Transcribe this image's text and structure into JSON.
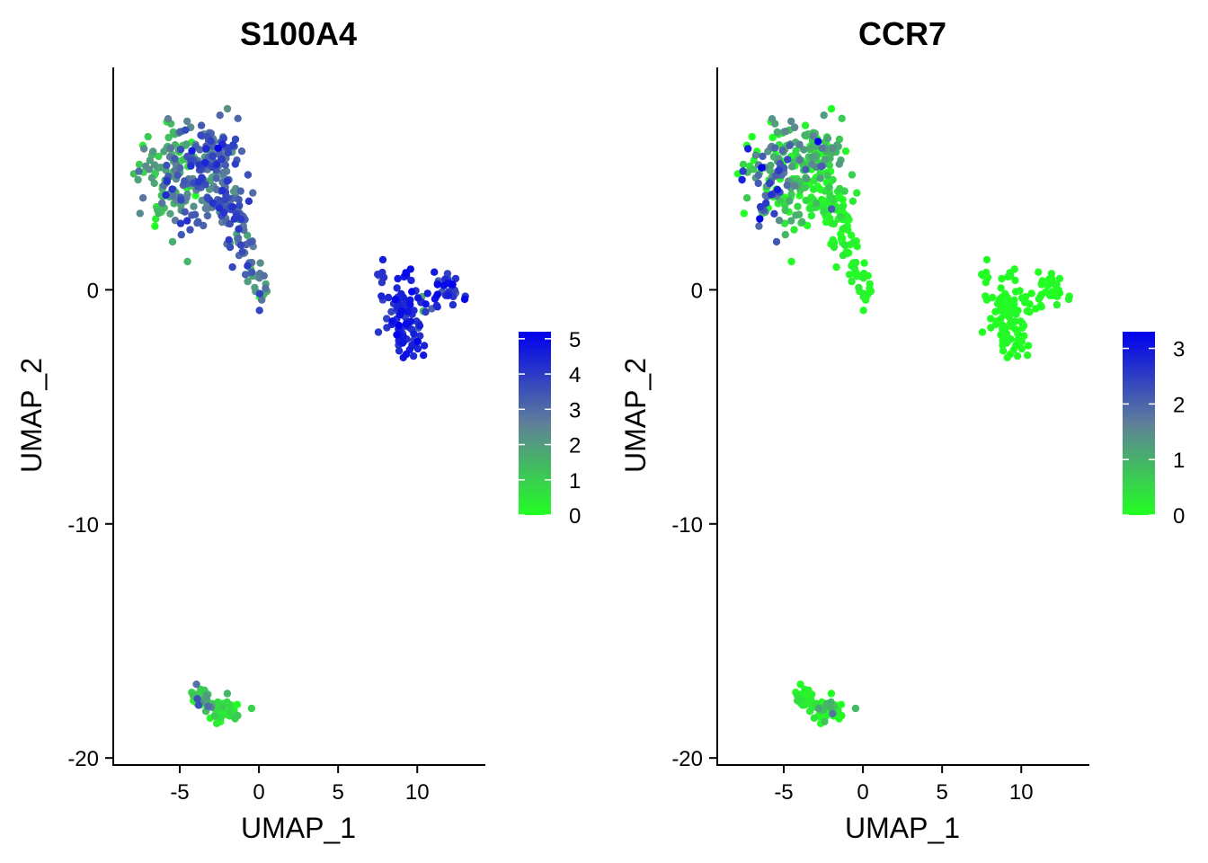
{
  "chart_data": [
    {
      "type": "scatter",
      "title": "S100A4",
      "xlabel": "UMAP_1",
      "ylabel": "UMAP_2",
      "xlim": [
        -9.2,
        14.3
      ],
      "ylim": [
        -20.3,
        9.5
      ],
      "x_ticks": [
        -5,
        0,
        5,
        10
      ],
      "y_ticks": [
        0,
        -10,
        -20
      ],
      "x_tick_labels": [
        "-5",
        "0",
        "5",
        "10"
      ],
      "y_tick_labels": [
        "0",
        "-10",
        "-20"
      ],
      "color_scale": {
        "low": "#22ff22",
        "mid": "#5f7f99",
        "high": "#0000ee",
        "min": 0,
        "max": 5.2
      },
      "legend_ticks": [
        0,
        1,
        2,
        3,
        4,
        5
      ],
      "legend_tick_labels": [
        "0",
        "1",
        "2",
        "3",
        "4",
        "5"
      ],
      "legend_position": "right",
      "grid": false,
      "clusters": [
        {
          "center": [
            -6.2,
            4.8
          ],
          "spread": [
            0.75,
            1.1
          ],
          "n": 70,
          "expr_mean": 1.6,
          "expr_sd": 0.9
        },
        {
          "center": [
            -5.0,
            5.9
          ],
          "spread": [
            0.7,
            0.7
          ],
          "n": 45,
          "expr_mean": 2.0,
          "expr_sd": 1.0
        },
        {
          "center": [
            -3.8,
            4.5
          ],
          "spread": [
            0.8,
            1.1
          ],
          "n": 80,
          "expr_mean": 3.0,
          "expr_sd": 0.9
        },
        {
          "center": [
            -2.6,
            5.3
          ],
          "spread": [
            0.8,
            1.0
          ],
          "n": 80,
          "expr_mean": 3.2,
          "expr_sd": 0.8
        },
        {
          "center": [
            -2.0,
            3.6
          ],
          "spread": [
            0.7,
            0.7
          ],
          "n": 45,
          "expr_mean": 3.1,
          "expr_sd": 0.8
        },
        {
          "center": [
            -1.3,
            2.2
          ],
          "spread": [
            0.4,
            0.8
          ],
          "n": 20,
          "expr_mean": 2.9,
          "expr_sd": 0.8
        },
        {
          "center": [
            -0.4,
            0.9
          ],
          "spread": [
            0.4,
            0.7
          ],
          "n": 18,
          "expr_mean": 2.8,
          "expr_sd": 0.8
        },
        {
          "center": [
            0.3,
            -0.2
          ],
          "spread": [
            0.25,
            0.3
          ],
          "n": 10,
          "expr_mean": 2.6,
          "expr_sd": 0.9
        },
        {
          "center": [
            9.2,
            -0.7
          ],
          "spread": [
            0.6,
            0.8
          ],
          "n": 55,
          "expr_mean": 4.4,
          "expr_sd": 0.4
        },
        {
          "center": [
            9.4,
            -2.0
          ],
          "spread": [
            0.55,
            0.5
          ],
          "n": 40,
          "expr_mean": 4.4,
          "expr_sd": 0.4
        },
        {
          "center": [
            11.8,
            0.1
          ],
          "spread": [
            0.7,
            0.35
          ],
          "n": 28,
          "expr_mean": 4.2,
          "expr_sd": 0.5
        },
        {
          "center": [
            10.6,
            -0.6
          ],
          "spread": [
            0.5,
            0.2
          ],
          "n": 8,
          "expr_mean": 3.6,
          "expr_sd": 1.0
        },
        {
          "center": [
            7.8,
            0.8
          ],
          "spread": [
            0.3,
            0.3
          ],
          "n": 6,
          "expr_mean": 3.5,
          "expr_sd": 0.6
        },
        {
          "center": [
            -3.6,
            -17.4
          ],
          "spread": [
            0.5,
            0.25
          ],
          "n": 25,
          "expr_mean": 1.2,
          "expr_sd": 1.0
        },
        {
          "center": [
            -2.2,
            -17.9
          ],
          "spread": [
            0.55,
            0.28
          ],
          "n": 40,
          "expr_mean": 0.5,
          "expr_sd": 0.6
        }
      ]
    },
    {
      "type": "scatter",
      "title": "CCR7",
      "xlabel": "UMAP_1",
      "ylabel": "UMAP_2",
      "xlim": [
        -9.2,
        14.3
      ],
      "ylim": [
        -20.3,
        9.5
      ],
      "x_ticks": [
        -5,
        0,
        5,
        10
      ],
      "y_ticks": [
        0,
        -10,
        -20
      ],
      "x_tick_labels": [
        "-5",
        "0",
        "5",
        "10"
      ],
      "y_tick_labels": [
        "0",
        "-10",
        "-20"
      ],
      "color_scale": {
        "low": "#22ff22",
        "mid": "#5f7f99",
        "high": "#0000ee",
        "min": 0,
        "max": 3.3
      },
      "legend_ticks": [
        0,
        1,
        2,
        3
      ],
      "legend_tick_labels": [
        "0",
        "1",
        "2",
        "3"
      ],
      "legend_position": "right",
      "grid": false,
      "clusters": [
        {
          "center": [
            -6.2,
            4.8
          ],
          "spread": [
            0.75,
            1.1
          ],
          "n": 70,
          "expr_mean": 1.2,
          "expr_sd": 1.2
        },
        {
          "center": [
            -5.0,
            5.9
          ],
          "spread": [
            0.7,
            0.7
          ],
          "n": 45,
          "expr_mean": 1.1,
          "expr_sd": 1.1
        },
        {
          "center": [
            -3.8,
            4.5
          ],
          "spread": [
            0.8,
            1.1
          ],
          "n": 80,
          "expr_mean": 0.3,
          "expr_sd": 0.5
        },
        {
          "center": [
            -2.6,
            5.3
          ],
          "spread": [
            0.8,
            1.0
          ],
          "n": 80,
          "expr_mean": 0.4,
          "expr_sd": 0.6
        },
        {
          "center": [
            -2.0,
            3.6
          ],
          "spread": [
            0.7,
            0.7
          ],
          "n": 45,
          "expr_mean": 0.1,
          "expr_sd": 0.2
        },
        {
          "center": [
            -1.3,
            2.2
          ],
          "spread": [
            0.4,
            0.8
          ],
          "n": 20,
          "expr_mean": 0.05,
          "expr_sd": 0.1
        },
        {
          "center": [
            -0.4,
            0.9
          ],
          "spread": [
            0.4,
            0.7
          ],
          "n": 18,
          "expr_mean": 0.05,
          "expr_sd": 0.1
        },
        {
          "center": [
            0.3,
            -0.2
          ],
          "spread": [
            0.25,
            0.3
          ],
          "n": 10,
          "expr_mean": 0.05,
          "expr_sd": 0.1
        },
        {
          "center": [
            9.2,
            -0.7
          ],
          "spread": [
            0.6,
            0.8
          ],
          "n": 55,
          "expr_mean": 0.02,
          "expr_sd": 0.05
        },
        {
          "center": [
            9.4,
            -2.0
          ],
          "spread": [
            0.55,
            0.5
          ],
          "n": 40,
          "expr_mean": 0.02,
          "expr_sd": 0.05
        },
        {
          "center": [
            11.8,
            0.1
          ],
          "spread": [
            0.7,
            0.35
          ],
          "n": 28,
          "expr_mean": 0.02,
          "expr_sd": 0.05
        },
        {
          "center": [
            10.6,
            -0.6
          ],
          "spread": [
            0.5,
            0.2
          ],
          "n": 8,
          "expr_mean": 0.02,
          "expr_sd": 0.05
        },
        {
          "center": [
            7.8,
            0.8
          ],
          "spread": [
            0.3,
            0.3
          ],
          "n": 6,
          "expr_mean": 0.02,
          "expr_sd": 0.05
        },
        {
          "center": [
            -3.6,
            -17.4
          ],
          "spread": [
            0.5,
            0.25
          ],
          "n": 25,
          "expr_mean": 0.1,
          "expr_sd": 0.2
        },
        {
          "center": [
            -2.2,
            -17.9
          ],
          "spread": [
            0.55,
            0.28
          ],
          "n": 40,
          "expr_mean": 0.3,
          "expr_sd": 0.7
        }
      ]
    }
  ]
}
